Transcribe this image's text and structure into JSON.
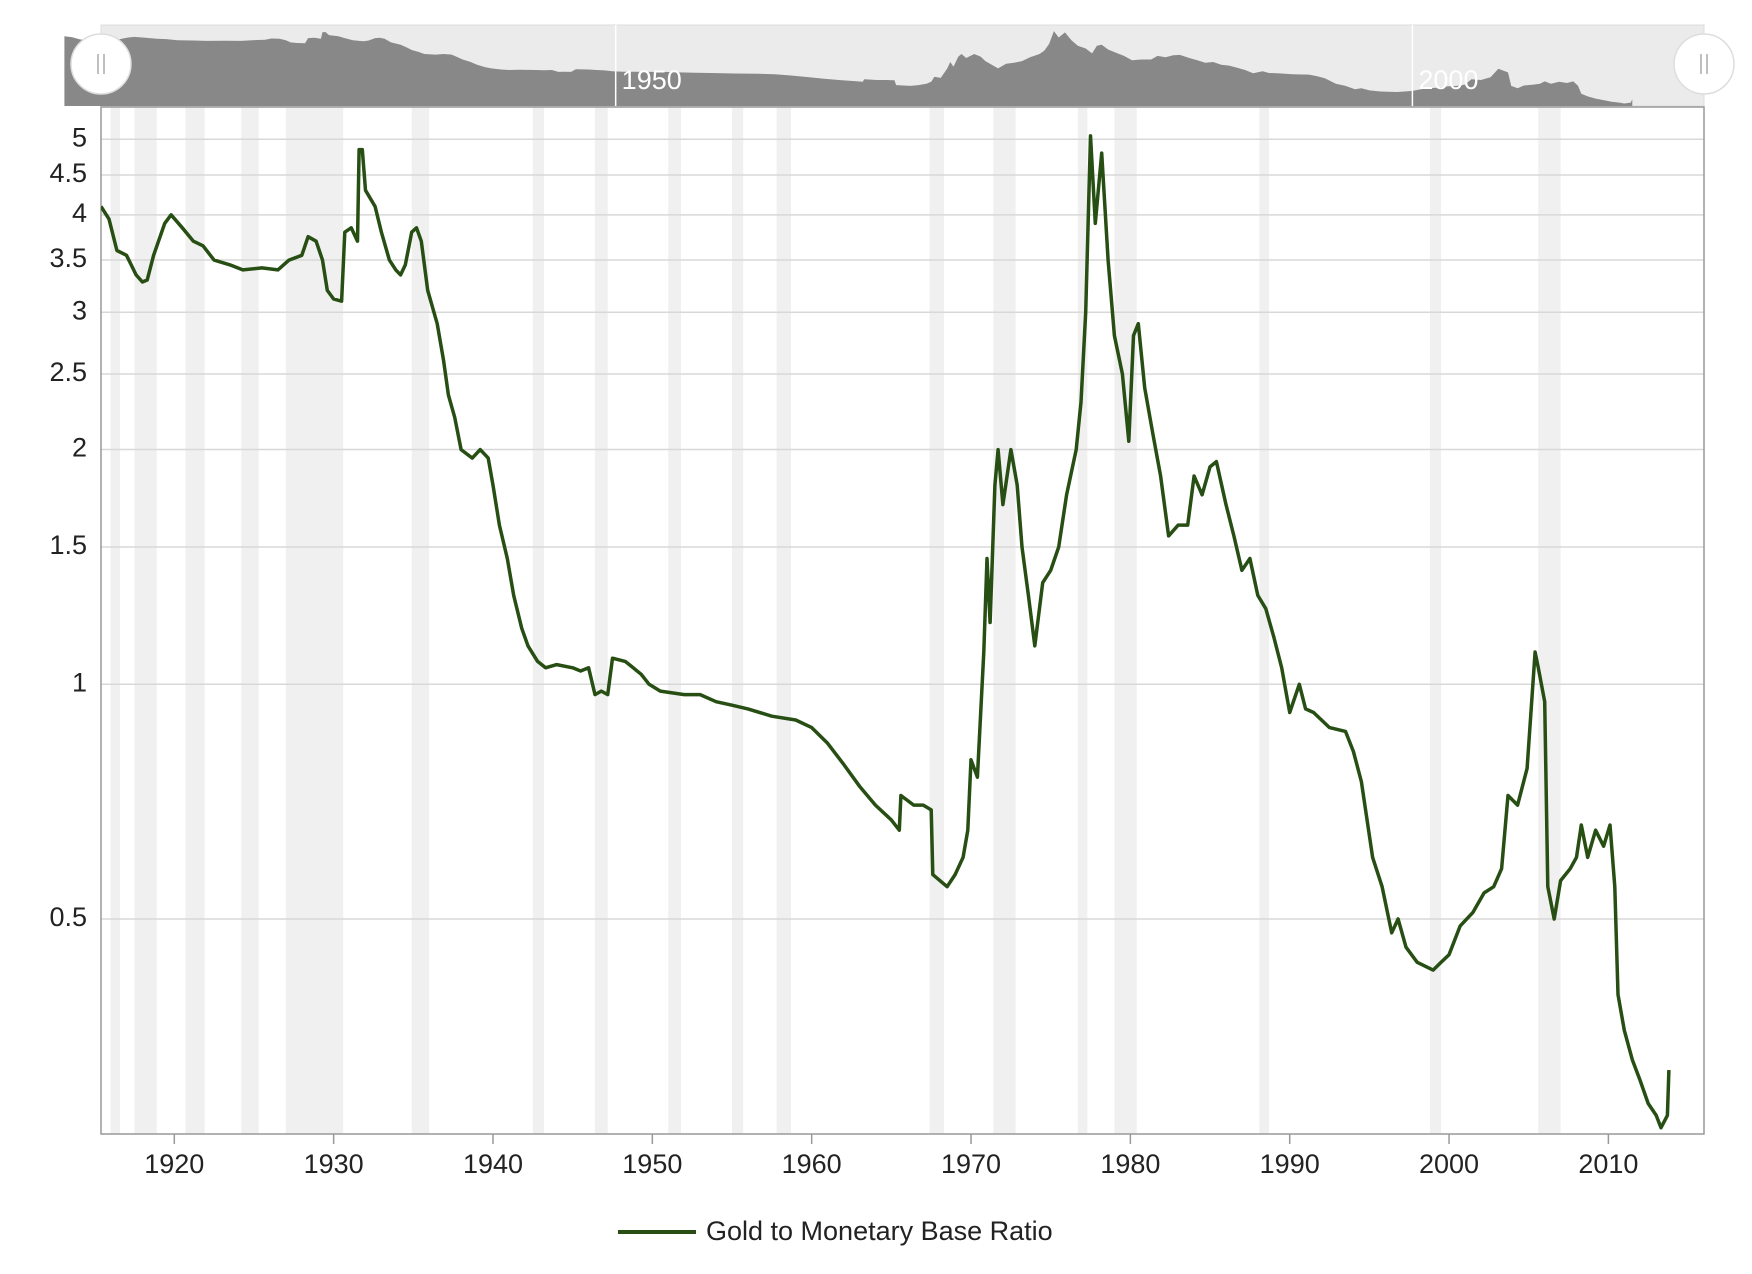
{
  "chart_data": {
    "type": "line",
    "yscale": "log",
    "grid": true,
    "legend": "bottom",
    "xlim": [
      1915.4,
      2016.0
    ],
    "xticks": [
      1920,
      1930,
      1940,
      1950,
      1960,
      1970,
      1980,
      1990,
      2000,
      2010
    ],
    "ylim": [
      0.265,
      5.5
    ],
    "yticks": [
      0.5,
      1,
      1.5,
      2,
      2.5,
      3,
      3.5,
      4,
      4.5,
      5
    ],
    "recessions": [
      [
        1916.0,
        1916.6
      ],
      [
        1917.5,
        1918.9
      ],
      [
        1920.7,
        1921.9
      ],
      [
        1924.2,
        1925.3
      ],
      [
        1927.0,
        1930.6
      ],
      [
        1934.9,
        1936.0
      ],
      [
        1942.5,
        1943.2
      ],
      [
        1946.4,
        1947.2
      ],
      [
        1951.0,
        1951.8
      ],
      [
        1955.0,
        1955.7
      ],
      [
        1957.8,
        1958.7
      ],
      [
        1967.4,
        1968.3
      ],
      [
        1971.4,
        1972.8
      ],
      [
        1976.7,
        1977.3
      ],
      [
        1979.0,
        1980.4
      ],
      [
        1988.1,
        1988.7
      ],
      [
        1998.8,
        1999.5
      ],
      [
        2005.6,
        2007.0
      ]
    ],
    "navigator": {
      "xlim": [
        1917.7,
        2018.3
      ],
      "xticks": [
        1950,
        2000
      ]
    },
    "x": [
      1915.4,
      1915.9,
      1916.4,
      1917.0,
      1917.6,
      1918.0,
      1918.3,
      1918.7,
      1919.4,
      1919.8,
      1920.5,
      1921.2,
      1921.8,
      1922.5,
      1923.5,
      1924.3,
      1925.5,
      1926.5,
      1927.2,
      1928.0,
      1928.4,
      1928.9,
      1929.3,
      1929.6,
      1930.0,
      1930.5,
      1930.7,
      1931.1,
      1931.5,
      1931.6,
      1931.8,
      1932.0,
      1932.6,
      1933.0,
      1933.5,
      1933.9,
      1934.2,
      1934.5,
      1934.9,
      1935.2,
      1935.5,
      1935.9,
      1936.5,
      1936.9,
      1937.2,
      1937.6,
      1938.0,
      1938.7,
      1939.2,
      1939.7,
      1940.0,
      1940.4,
      1940.9,
      1941.3,
      1941.8,
      1942.2,
      1942.8,
      1943.3,
      1944.0,
      1945.0,
      1945.5,
      1946.0,
      1946.4,
      1946.8,
      1947.2,
      1947.5,
      1948.3,
      1948.8,
      1949.3,
      1949.8,
      1950.5,
      1952.0,
      1953.0,
      1954.0,
      1955.0,
      1956.0,
      1957.5,
      1959.0,
      1960.0,
      1961.0,
      1962.0,
      1963.0,
      1964.0,
      1965.0,
      1965.5,
      1965.6,
      1966.4,
      1967.0,
      1967.5,
      1967.6,
      1968.5,
      1969.0,
      1969.5,
      1969.8,
      1970.0,
      1970.4,
      1970.8,
      1971.0,
      1971.2,
      1971.5,
      1971.7,
      1972.0,
      1972.5,
      1972.9,
      1973.2,
      1973.6,
      1974.0,
      1974.5,
      1975.0,
      1975.5,
      1976.0,
      1976.6,
      1976.9,
      1977.2,
      1977.5,
      1977.8,
      1978.2,
      1978.6,
      1979.0,
      1979.5,
      1979.9,
      1980.2,
      1980.5,
      1980.9,
      1981.4,
      1981.9,
      1982.4,
      1983.0,
      1983.6,
      1984.0,
      1984.5,
      1985.0,
      1985.4,
      1986.0,
      1986.5,
      1987.0,
      1987.5,
      1988.0,
      1988.5,
      1989.0,
      1989.5,
      1990.0,
      1990.6,
      1991.0,
      1991.5,
      1992.5,
      1993.5,
      1994.0,
      1994.5,
      1995.2,
      1995.8,
      1996.4,
      1996.8,
      1997.3,
      1998.0,
      1999.0,
      1999.5,
      2000.0,
      2000.7,
      2001.5,
      2002.2,
      2002.8,
      2003.3,
      2003.7,
      2004.3,
      2004.9,
      2005.4,
      2005.6,
      2006.0,
      2006.2,
      2006.6,
      2007.0,
      2007.6,
      2008.0,
      2008.3,
      2008.7,
      2009.2,
      2009.7,
      2010.1,
      2010.4,
      2010.6,
      2011.0,
      2011.5,
      2012.0,
      2012.5,
      2013.0,
      2013.3,
      2013.7,
      2013.8
    ],
    "series": [
      {
        "name": "Gold to Monetary Base Ratio",
        "color": "#274e13",
        "values": [
          4.1,
          3.95,
          3.6,
          3.55,
          3.35,
          3.28,
          3.3,
          3.55,
          3.9,
          4.0,
          3.85,
          3.7,
          3.65,
          3.5,
          3.45,
          3.4,
          3.42,
          3.4,
          3.5,
          3.55,
          3.75,
          3.7,
          3.5,
          3.2,
          3.12,
          3.1,
          3.8,
          3.85,
          3.7,
          4.85,
          4.85,
          4.3,
          4.1,
          3.8,
          3.5,
          3.4,
          3.35,
          3.45,
          3.8,
          3.85,
          3.7,
          3.2,
          2.9,
          2.6,
          2.35,
          2.2,
          2.0,
          1.95,
          2.0,
          1.95,
          1.8,
          1.6,
          1.45,
          1.3,
          1.18,
          1.12,
          1.07,
          1.05,
          1.06,
          1.05,
          1.04,
          1.05,
          0.97,
          0.98,
          0.97,
          1.08,
          1.07,
          1.05,
          1.03,
          1.0,
          0.98,
          0.97,
          0.97,
          0.95,
          0.94,
          0.93,
          0.91,
          0.9,
          0.88,
          0.84,
          0.79,
          0.74,
          0.7,
          0.67,
          0.65,
          0.72,
          0.7,
          0.7,
          0.69,
          0.57,
          0.55,
          0.57,
          0.6,
          0.65,
          0.8,
          0.76,
          1.1,
          1.45,
          1.2,
          1.8,
          2.0,
          1.7,
          2.0,
          1.8,
          1.5,
          1.3,
          1.12,
          1.35,
          1.4,
          1.5,
          1.75,
          2.0,
          2.3,
          3.0,
          5.05,
          3.9,
          4.8,
          3.5,
          2.8,
          2.5,
          2.05,
          2.8,
          2.9,
          2.4,
          2.1,
          1.85,
          1.55,
          1.6,
          1.6,
          1.85,
          1.75,
          1.9,
          1.93,
          1.7,
          1.55,
          1.4,
          1.45,
          1.3,
          1.25,
          1.15,
          1.05,
          0.92,
          1.0,
          0.93,
          0.92,
          0.88,
          0.87,
          0.82,
          0.75,
          0.6,
          0.55,
          0.48,
          0.5,
          0.46,
          0.44,
          0.43,
          0.44,
          0.45,
          0.49,
          0.51,
          0.54,
          0.55,
          0.58,
          0.72,
          0.7,
          0.78,
          1.1,
          1.05,
          0.95,
          0.55,
          0.5,
          0.56,
          0.58,
          0.6,
          0.66,
          0.6,
          0.65,
          0.62,
          0.66,
          0.55,
          0.4,
          0.36,
          0.33,
          0.31,
          0.29,
          0.28,
          0.27,
          0.28,
          0.32
        ]
      }
    ]
  }
}
